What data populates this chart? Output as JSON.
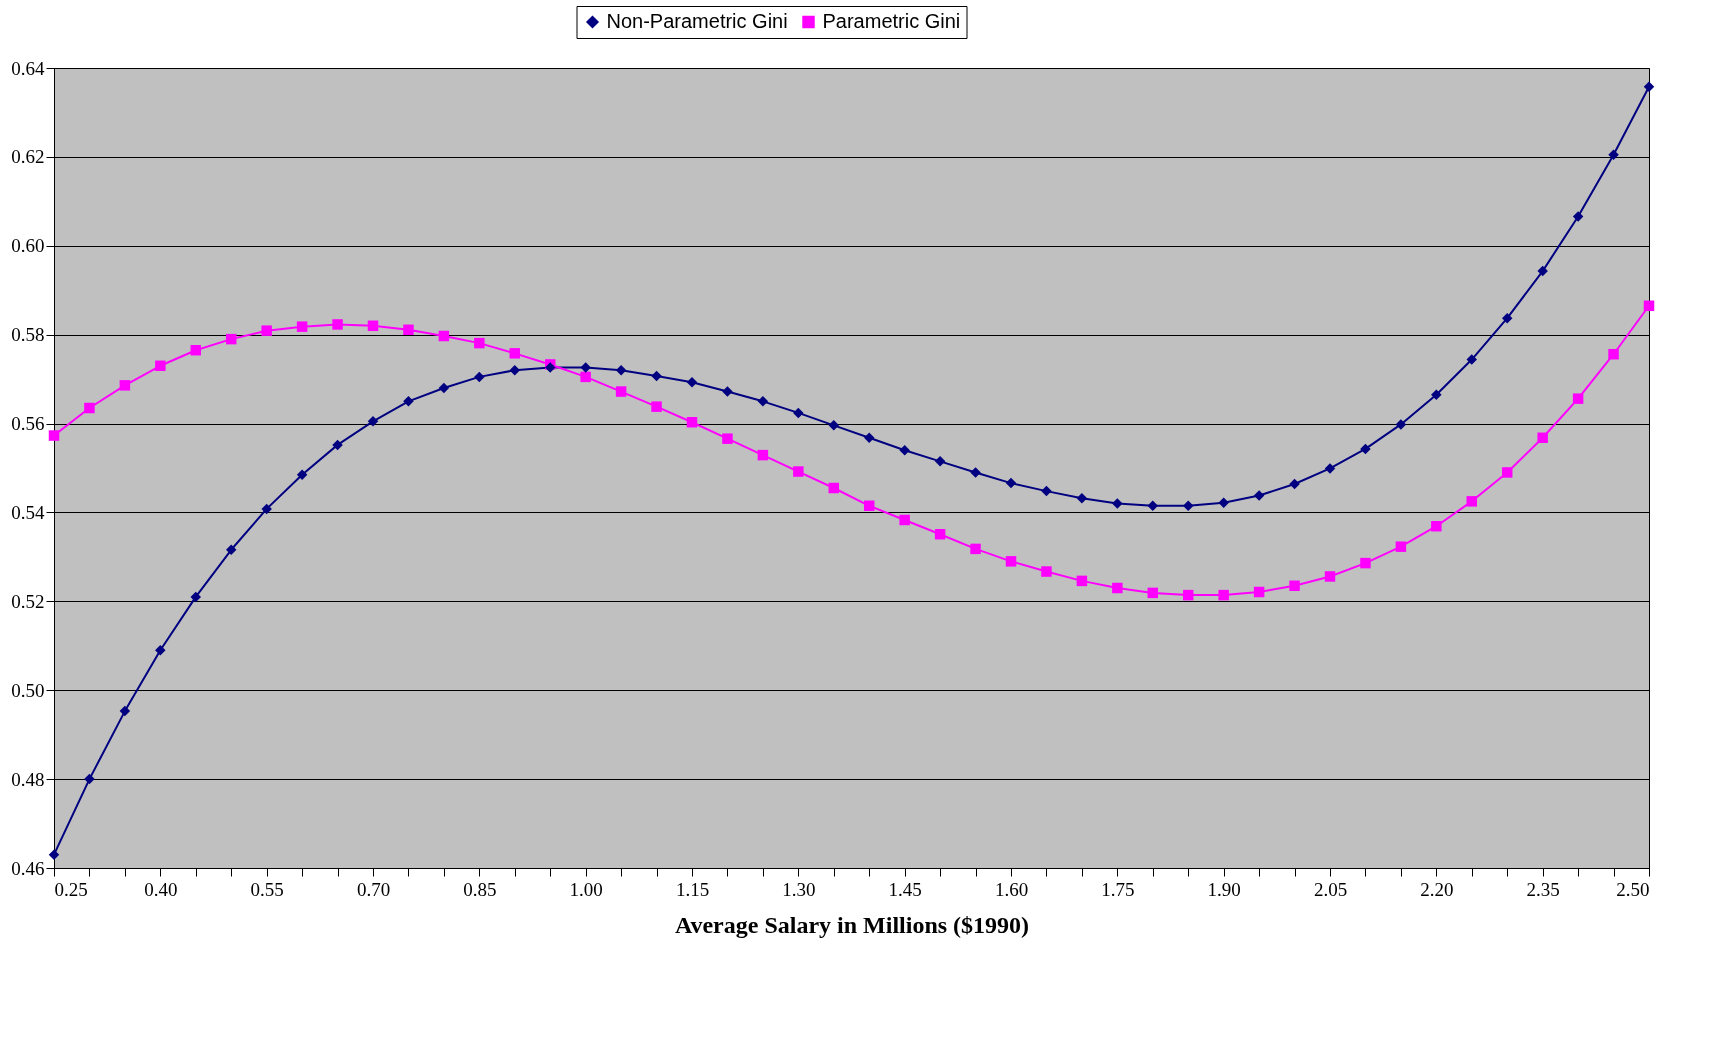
{
  "chart_data": {
    "type": "line",
    "xlabel": "Average Salary in Millions ($1990)",
    "x": [
      0.25,
      0.3,
      0.35,
      0.4,
      0.45,
      0.5,
      0.55,
      0.6,
      0.65,
      0.7,
      0.75,
      0.8,
      0.85,
      0.9,
      0.95,
      1.0,
      1.05,
      1.1,
      1.15,
      1.2,
      1.25,
      1.3,
      1.35,
      1.4,
      1.45,
      1.5,
      1.55,
      1.6,
      1.65,
      1.7,
      1.75,
      1.8,
      1.85,
      1.9,
      1.95,
      2.0,
      2.05,
      2.1,
      2.15,
      2.2,
      2.25,
      2.3,
      2.35,
      2.4,
      2.45,
      2.5
    ],
    "series": [
      {
        "name": "Non-Parametric Gini",
        "color": "#000080",
        "marker": "diamond",
        "values": [
          0.463,
          0.48,
          0.4953,
          0.509,
          0.521,
          0.5316,
          0.5408,
          0.5485,
          0.5552,
          0.5605,
          0.565,
          0.568,
          0.5705,
          0.572,
          0.5726,
          0.5726,
          0.572,
          0.5707,
          0.5693,
          0.5672,
          0.565,
          0.5624,
          0.5596,
          0.5568,
          0.554,
          0.5515,
          0.549,
          0.5466,
          0.5448,
          0.5432,
          0.542,
          0.5415,
          0.5415,
          0.5422,
          0.5438,
          0.5464,
          0.5499,
          0.5543,
          0.5598,
          0.5665,
          0.5744,
          0.5837,
          0.5943,
          0.6066,
          0.6205,
          0.6358
        ]
      },
      {
        "name": "Parametric Gini",
        "color": "#ff00ff",
        "marker": "square",
        "values": [
          0.5573,
          0.5635,
          0.5686,
          0.573,
          0.5765,
          0.579,
          0.5809,
          0.5818,
          0.5823,
          0.582,
          0.5811,
          0.5797,
          0.5781,
          0.5758,
          0.5733,
          0.5705,
          0.5672,
          0.5638,
          0.5603,
          0.5566,
          0.5529,
          0.5492,
          0.5455,
          0.5415,
          0.5383,
          0.5351,
          0.5318,
          0.529,
          0.5267,
          0.5246,
          0.523,
          0.5219,
          0.5214,
          0.5214,
          0.5221,
          0.5235,
          0.5256,
          0.5286,
          0.5323,
          0.5369,
          0.5425,
          0.549,
          0.5568,
          0.5656,
          0.5756,
          0.5865
        ]
      }
    ],
    "xlim": [
      0.25,
      2.5
    ],
    "xticks": [
      {
        "value": 0.25,
        "label": "0.25"
      },
      {
        "value": 0.3,
        "label": null
      },
      {
        "value": 0.35,
        "label": null
      },
      {
        "value": 0.4,
        "label": "0.40"
      },
      {
        "value": 0.45,
        "label": null
      },
      {
        "value": 0.5,
        "label": null
      },
      {
        "value": 0.55,
        "label": "0.55"
      },
      {
        "value": 0.6,
        "label": null
      },
      {
        "value": 0.65,
        "label": null
      },
      {
        "value": 0.7,
        "label": "0.70"
      },
      {
        "value": 0.75,
        "label": null
      },
      {
        "value": 0.8,
        "label": null
      },
      {
        "value": 0.85,
        "label": "0.85"
      },
      {
        "value": 0.9,
        "label": null
      },
      {
        "value": 0.95,
        "label": null
      },
      {
        "value": 1.0,
        "label": "1.00"
      },
      {
        "value": 1.05,
        "label": null
      },
      {
        "value": 1.1,
        "label": null
      },
      {
        "value": 1.15,
        "label": "1.15"
      },
      {
        "value": 1.2,
        "label": null
      },
      {
        "value": 1.25,
        "label": null
      },
      {
        "value": 1.3,
        "label": "1.30"
      },
      {
        "value": 1.35,
        "label": null
      },
      {
        "value": 1.4,
        "label": null
      },
      {
        "value": 1.45,
        "label": "1.45"
      },
      {
        "value": 1.5,
        "label": null
      },
      {
        "value": 1.55,
        "label": null
      },
      {
        "value": 1.6,
        "label": "1.60"
      },
      {
        "value": 1.65,
        "label": null
      },
      {
        "value": 1.7,
        "label": null
      },
      {
        "value": 1.75,
        "label": "1.75"
      },
      {
        "value": 1.8,
        "label": null
      },
      {
        "value": 1.85,
        "label": null
      },
      {
        "value": 1.9,
        "label": "1.90"
      },
      {
        "value": 1.95,
        "label": null
      },
      {
        "value": 2.0,
        "label": null
      },
      {
        "value": 2.05,
        "label": "2.05"
      },
      {
        "value": 2.1,
        "label": null
      },
      {
        "value": 2.15,
        "label": null
      },
      {
        "value": 2.2,
        "label": "2.20"
      },
      {
        "value": 2.25,
        "label": null
      },
      {
        "value": 2.3,
        "label": null
      },
      {
        "value": 2.35,
        "label": "2.35"
      },
      {
        "value": 2.4,
        "label": null
      },
      {
        "value": 2.45,
        "label": null
      },
      {
        "value": 2.5,
        "label": "2.50"
      }
    ],
    "ylim": [
      0.46,
      0.64
    ],
    "yticks": [
      {
        "value": 0.46,
        "label": "0.46"
      },
      {
        "value": 0.48,
        "label": "0.48"
      },
      {
        "value": 0.5,
        "label": "0.50"
      },
      {
        "value": 0.52,
        "label": "0.52"
      },
      {
        "value": 0.54,
        "label": "0.54"
      },
      {
        "value": 0.56,
        "label": "0.56"
      },
      {
        "value": 0.58,
        "label": "0.58"
      },
      {
        "value": 0.6,
        "label": "0.60"
      },
      {
        "value": 0.62,
        "label": "0.62"
      },
      {
        "value": 0.64,
        "label": "0.64"
      }
    ],
    "grid": "y",
    "legend": "top",
    "line_style": "solid"
  }
}
